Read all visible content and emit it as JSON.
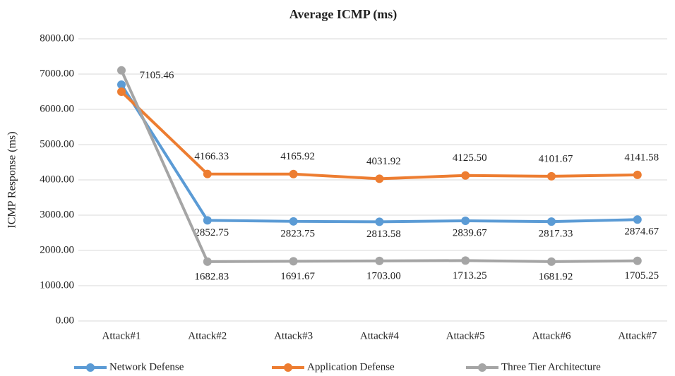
{
  "chart_data": {
    "type": "line",
    "title": "Average ICMP (ms)",
    "y_label": "ICMP Response (ms)",
    "categories": [
      "Attack#1",
      "Attack#2",
      "Attack#3",
      "Attack#4",
      "Attack#5",
      "Attack#6",
      "Attack#7"
    ],
    "series": [
      {
        "name": "Network Defense",
        "color": "#5b9bd5",
        "values": [
          6700,
          2852.75,
          2823.75,
          2813.58,
          2839.67,
          2817.33,
          2874.67
        ],
        "value_labels": [
          null,
          "2852.75",
          "2823.75",
          "2813.58",
          "2839.67",
          "2817.33",
          "2874.67"
        ]
      },
      {
        "name": "Application Defense",
        "color": "#ed7d31",
        "values": [
          6500,
          4166.33,
          4165.92,
          4031.92,
          4125.5,
          4101.67,
          4141.58
        ],
        "value_labels": [
          null,
          "4166.33",
          "4165.92",
          "4031.92",
          "4125.50",
          "4101.67",
          "4141.58"
        ]
      },
      {
        "name": "Three Tier Architecture",
        "color": "#a5a5a5",
        "values": [
          7105.46,
          1682.83,
          1691.67,
          1703,
          1713.25,
          1681.92,
          1705.25
        ],
        "value_labels": [
          "7105.46",
          "1682.83",
          "1691.67",
          "1703.00",
          "1713.25",
          "1681.92",
          "1705.25"
        ]
      }
    ],
    "ylim": [
      0,
      8000
    ],
    "yticks": [
      {
        "value": 0,
        "label": "0.00"
      },
      {
        "value": 1000,
        "label": "1000.00"
      },
      {
        "value": 2000,
        "label": "2000.00"
      },
      {
        "value": 3000,
        "label": "3000.00"
      },
      {
        "value": 4000,
        "label": "4000.00"
      },
      {
        "value": 5000,
        "label": "5000.00"
      },
      {
        "value": 6000,
        "label": "6000.00"
      },
      {
        "value": 7000,
        "label": "7000.00"
      },
      {
        "value": 8000,
        "label": "8000.00"
      }
    ],
    "grid": true,
    "legend": "bottom"
  }
}
